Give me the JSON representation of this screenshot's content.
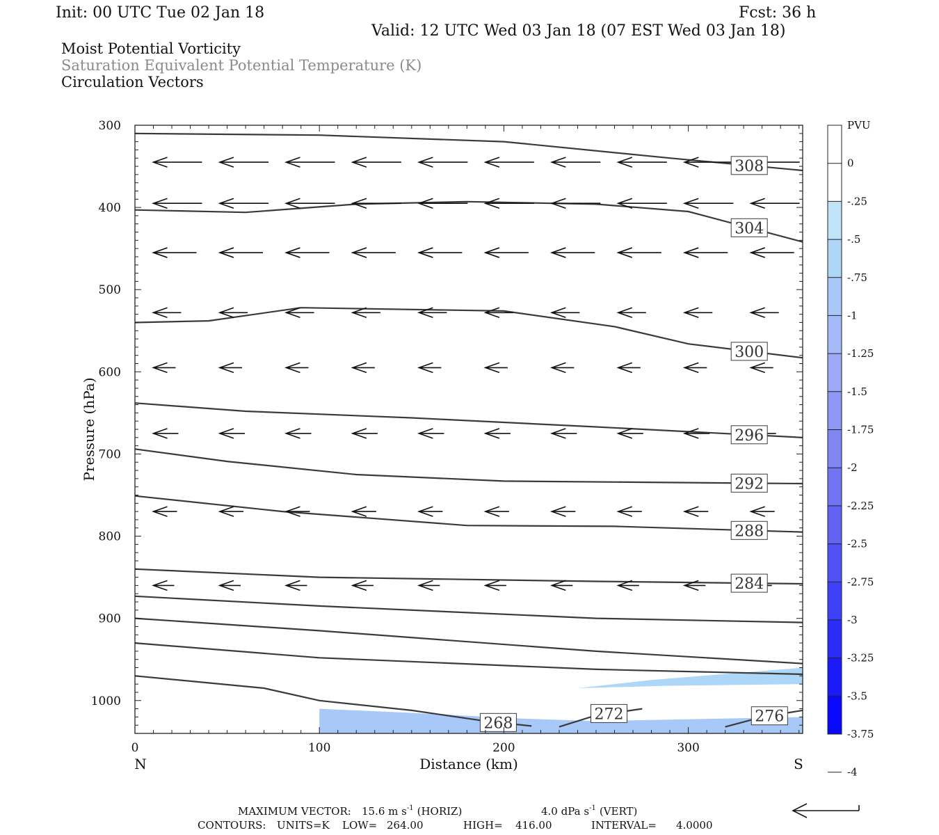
{
  "header": {
    "init_text": "Init: 00 UTC Tue 02 Jan 18",
    "fcst_text": "Fcst:   36 h",
    "valid_text": "Valid: 12 UTC Wed 03 Jan 18 (07 EST Wed 03 Jan 18)",
    "field_lines": [
      "Moist Potential Vorticity",
      "Saturation Equivalent Potential Temperature (K)",
      "Circulation Vectors"
    ]
  },
  "colors": {
    "contour": "#3a3a3a",
    "text": "#111111",
    "secondary_text": "#8a8a8a",
    "pv_scale": [
      "#ffffff",
      "#ffffff",
      "#bfe3f7",
      "#aed6f7",
      "#a8c8f7",
      "#a5b8f7",
      "#9da8f7",
      "#9098f5",
      "#8186f3",
      "#7274f3",
      "#6262f3",
      "#5052f5",
      "#3e40f7",
      "#2c2cf9",
      "#1a1afb",
      "#0808fd"
    ]
  },
  "chart_data": {
    "type": "cross-section",
    "xlabel": "Distance (km)",
    "ylabel": "Pressure (hPa)",
    "xlim": [
      0,
      362
    ],
    "ylim": [
      300,
      1040
    ],
    "y_scale": "linear (pressure increasing downward)",
    "x_ticks": [
      0,
      100,
      200,
      300
    ],
    "y_ticks": [
      300,
      400,
      500,
      600,
      700,
      800,
      900,
      1000
    ],
    "end_labels": {
      "left": "N",
      "right": "S"
    },
    "colorbar": {
      "title": "PVU",
      "levels": [
        "0",
        "-.25",
        "-.5",
        "-.75",
        "-1",
        "-1.25",
        "-1.5",
        "-1.75",
        "-2",
        "-2.25",
        "-2.5",
        "-2.75",
        "-3",
        "-3.25",
        "-3.5",
        "-3.75",
        "-4"
      ]
    },
    "theta_e_contours": [
      {
        "label": "308",
        "points": [
          [
            0,
            310
          ],
          [
            100,
            312
          ],
          [
            200,
            320
          ],
          [
            290,
            340
          ],
          [
            362,
            355
          ]
        ]
      },
      {
        "label": "304",
        "points": [
          [
            0,
            403
          ],
          [
            60,
            406
          ],
          [
            120,
            396
          ],
          [
            180,
            393
          ],
          [
            250,
            396
          ],
          [
            300,
            405
          ],
          [
            362,
            442
          ]
        ]
      },
      {
        "label": "300",
        "points": [
          [
            0,
            540
          ],
          [
            40,
            538
          ],
          [
            90,
            522
          ],
          [
            200,
            526
          ],
          [
            260,
            545
          ],
          [
            300,
            566
          ],
          [
            362,
            583
          ]
        ]
      },
      {
        "label": "296",
        "points": [
          [
            0,
            638
          ],
          [
            60,
            648
          ],
          [
            150,
            656
          ],
          [
            250,
            667
          ],
          [
            362,
            680
          ]
        ]
      },
      {
        "label": "292",
        "points": [
          [
            0,
            694
          ],
          [
            50,
            709
          ],
          [
            120,
            725
          ],
          [
            200,
            733
          ],
          [
            362,
            736
          ]
        ]
      },
      {
        "label": "288",
        "points": [
          [
            0,
            751
          ],
          [
            80,
            770
          ],
          [
            180,
            787
          ],
          [
            260,
            788
          ],
          [
            362,
            795
          ]
        ]
      },
      {
        "label": "284",
        "points": [
          [
            0,
            840
          ],
          [
            100,
            850
          ],
          [
            250,
            855
          ],
          [
            362,
            858
          ]
        ]
      },
      {
        "label": "",
        "points": [
          [
            0,
            873
          ],
          [
            100,
            885
          ],
          [
            250,
            900
          ],
          [
            362,
            905
          ]
        ]
      },
      {
        "label": "",
        "points": [
          [
            0,
            900
          ],
          [
            100,
            915
          ],
          [
            250,
            940
          ],
          [
            362,
            955
          ]
        ]
      },
      {
        "label": "",
        "points": [
          [
            0,
            930
          ],
          [
            100,
            948
          ],
          [
            250,
            962
          ],
          [
            362,
            968
          ]
        ]
      },
      {
        "label": "268",
        "points": [
          [
            0,
            970
          ],
          [
            70,
            985
          ],
          [
            100,
            1000
          ],
          [
            150,
            1012
          ],
          [
            190,
            1025
          ],
          [
            215,
            1031
          ]
        ]
      },
      {
        "label": "272",
        "points": [
          [
            230,
            1032
          ],
          [
            250,
            1018
          ],
          [
            275,
            1010
          ]
        ]
      },
      {
        "label": "276",
        "points": [
          [
            320,
            1032
          ],
          [
            340,
            1020
          ],
          [
            362,
            1012
          ]
        ]
      }
    ],
    "negative_mpv_regions": [
      {
        "min_pvu": -0.75,
        "points": [
          [
            100,
            1010
          ],
          [
            150,
            1015
          ],
          [
            210,
            1022
          ],
          [
            250,
            1025
          ],
          [
            362,
            1020
          ],
          [
            362,
            1040
          ],
          [
            100,
            1040
          ]
        ]
      },
      {
        "min_pvu": -0.5,
        "points": [
          [
            240,
            985
          ],
          [
            280,
            975
          ],
          [
            362,
            960
          ],
          [
            362,
            980
          ],
          [
            290,
            982
          ]
        ]
      }
    ],
    "contour_stats": {
      "units": "K",
      "low": 264.0,
      "high": 416.0,
      "interval": 4.0
    },
    "max_vector": {
      "horiz": "15.6 m s⁻¹ (HORIZ)",
      "vert": "4.0 dPa s⁻¹ (VERT)"
    }
  },
  "footer": {
    "max_vector_label": "MAXIMUM VECTOR:",
    "horiz_value": "15.6 m s",
    "horiz_unit": "(HORIZ)",
    "vert_value": "4.0 dPa s",
    "vert_unit": "(VERT)",
    "exponent": "-1",
    "contours_label": "CONTOURS:",
    "units_text": "UNITS=K",
    "low_text": "LOW=",
    "low_value": "264.00",
    "high_text": "HIGH=",
    "high_value": "416.00",
    "interval_text": "INTERVAL=",
    "interval_value": "4.0000"
  }
}
